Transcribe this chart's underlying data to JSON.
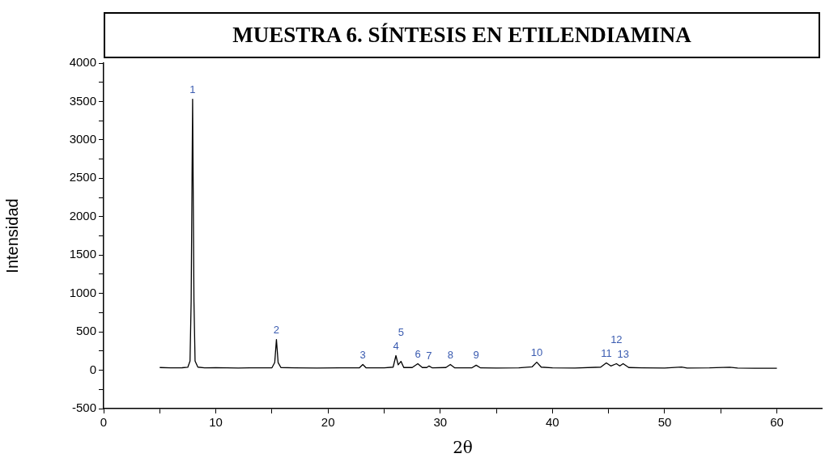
{
  "chart_data": {
    "type": "line",
    "title": "MUESTRA 6. SÍNTESIS EN ETILENDIAMINA",
    "xlabel": "2θ",
    "ylabel": "Intensidad",
    "xlim": [
      0,
      64
    ],
    "xticks": [
      0,
      {
        "value": 5,
        "label": null
      },
      10,
      {
        "value": 15,
        "label": null
      },
      20,
      {
        "value": 25,
        "label": null
      },
      30,
      {
        "value": 35,
        "label": null
      },
      40,
      {
        "value": 45,
        "label": null
      },
      50,
      {
        "value": 55,
        "label": null
      },
      60
    ],
    "ylim": [
      -500,
      4000
    ],
    "yticks": [
      -500,
      {
        "value": -250,
        "label": null
      },
      0,
      {
        "value": 250,
        "label": null
      },
      500,
      {
        "value": 750,
        "label": null
      },
      1000,
      {
        "value": 1250,
        "label": null
      },
      1500,
      {
        "value": 1750,
        "label": null
      },
      2000,
      {
        "value": 2250,
        "label": null
      },
      2500,
      {
        "value": 2750,
        "label": null
      },
      3000,
      {
        "value": 3250,
        "label": null
      },
      3500,
      {
        "value": 3750,
        "label": null
      },
      4000
    ],
    "grid": false,
    "legend": false,
    "marker": "none",
    "line_style": "solid",
    "series": [
      {
        "color": "#000000",
        "x": [
          5,
          6,
          7,
          7.5,
          7.7,
          7.8,
          7.93,
          8.05,
          8.15,
          8.4,
          9,
          10,
          11,
          12,
          13,
          14,
          15,
          15.25,
          15.4,
          15.55,
          15.8,
          17,
          19,
          21,
          22.8,
          23.1,
          23.4,
          25,
          25.8,
          26.05,
          26.25,
          26.5,
          26.75,
          27.5,
          28,
          28.4,
          28.8,
          29,
          29.3,
          30.5,
          30.9,
          31.3,
          32.8,
          33.2,
          33.6,
          35,
          37,
          38.2,
          38.6,
          39,
          40,
          42,
          44.3,
          44.8,
          45.2,
          45.7,
          46,
          46.3,
          46.8,
          48,
          50,
          51.5,
          52,
          54,
          55.8,
          56.5,
          58,
          60
        ],
        "values": [
          35,
          30,
          32,
          38,
          120,
          900,
          3530,
          900,
          120,
          40,
          30,
          32,
          30,
          28,
          30,
          30,
          32,
          100,
          400,
          100,
          35,
          30,
          28,
          30,
          32,
          75,
          30,
          30,
          40,
          190,
          70,
          115,
          35,
          35,
          85,
          35,
          35,
          55,
          30,
          35,
          75,
          30,
          30,
          65,
          30,
          28,
          30,
          45,
          105,
          40,
          30,
          28,
          40,
          95,
          55,
          85,
          55,
          85,
          35,
          30,
          28,
          42,
          28,
          30,
          38,
          28,
          25,
          25
        ]
      }
    ],
    "annotations": [
      {
        "text": "1",
        "x": 7.93,
        "y": 3530
      },
      {
        "text": "2",
        "x": 15.4,
        "y": 400
      },
      {
        "text": "3",
        "x": 23.1,
        "y": 75
      },
      {
        "text": "4",
        "x": 26.05,
        "y": 190
      },
      {
        "text": "5",
        "x": 26.5,
        "y": 115
      },
      {
        "text": "6",
        "x": 28,
        "y": 85
      },
      {
        "text": "7",
        "x": 29,
        "y": 55
      },
      {
        "text": "8",
        "x": 30.9,
        "y": 75
      },
      {
        "text": "9",
        "x": 33.2,
        "y": 65
      },
      {
        "text": "10",
        "x": 38.6,
        "y": 105
      },
      {
        "text": "11",
        "x": 44.8,
        "y": 95
      },
      {
        "text": "12",
        "x": 45.7,
        "y": 85
      },
      {
        "text": "13",
        "x": 46.3,
        "y": 85
      }
    ]
  }
}
